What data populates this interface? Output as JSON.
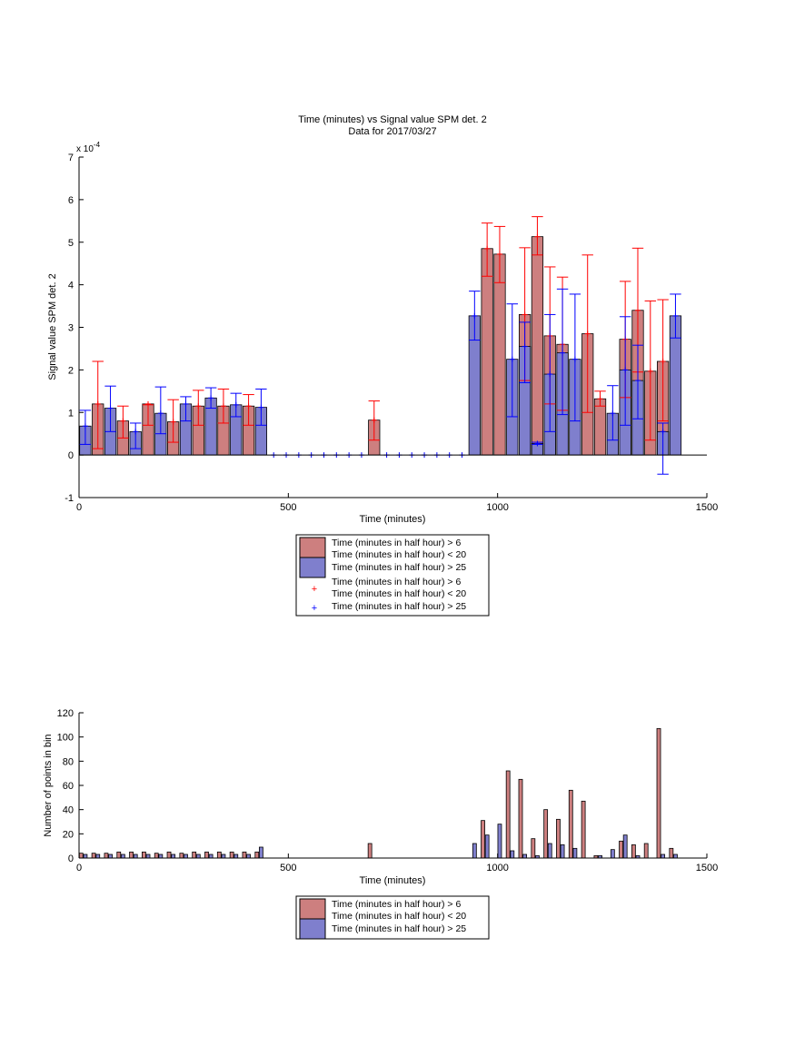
{
  "chart_data": [
    {
      "type": "bar",
      "title": "Time (minutes) vs Signal value SPM det. 2",
      "subtitle": "Data for 2017/03/27",
      "xlabel": "Time (minutes)",
      "ylabel": "Signal value SPM det. 2",
      "xlim": [
        0,
        1500
      ],
      "ylim": [
        -1,
        7
      ],
      "y_exponent": "x 10",
      "y_exponent_power": "-4",
      "xticks": [
        "0",
        "500",
        "1000",
        "1500"
      ],
      "yticks": [
        "-1",
        "0",
        "1",
        "2",
        "3",
        "4",
        "5",
        "6",
        "7"
      ],
      "xtick_values": [
        0,
        500,
        1000,
        1500
      ],
      "ytick_values": [
        -1,
        0,
        1,
        2,
        3,
        4,
        5,
        6,
        7
      ],
      "legend": [
        "Time (minutes in half hour) > 6",
        "Time (minutes in half hour) < 20",
        "Time (minutes in half hour) > 25",
        "Time (minutes in half hour) > 6",
        "Time (minutes in half hour) < 20",
        "Time (minutes in half hour) > 25"
      ],
      "legend_placement": "below",
      "colors": {
        "red_bar": "#cd7f7f",
        "blue_bar": "#7f7fcd",
        "red_err": "#ff0000",
        "blue_err": "#0000ff"
      },
      "series": [
        {
          "name": "Time (minutes in half hour) > 6  Time (minutes in half hour) < 20",
          "x": [
            45,
            105,
            165,
            225,
            285,
            345,
            405,
            705,
            975,
            1005,
            1065,
            1095,
            1125,
            1155,
            1215,
            1245,
            1305,
            1335,
            1365,
            1395
          ],
          "values": [
            1.2,
            0.8,
            1.2,
            0.78,
            1.15,
            1.15,
            1.15,
            0.82,
            4.85,
            4.72,
            3.3,
            5.13,
            2.8,
            2.6,
            2.85,
            1.32,
            2.72,
            3.4,
            1.97,
            2.2
          ],
          "err_low": [
            0.15,
            0.4,
            0.7,
            0.3,
            0.7,
            0.75,
            0.7,
            0.35,
            4.2,
            4.05,
            1.75,
            4.7,
            1.2,
            1.05,
            1.0,
            1.15,
            1.35,
            1.95,
            0.35,
            0.8
          ],
          "err_high": [
            2.2,
            1.15,
            1.18,
            1.3,
            1.52,
            1.55,
            1.42,
            1.27,
            5.45,
            5.37,
            4.87,
            5.6,
            4.42,
            4.18,
            4.7,
            1.5,
            4.08,
            4.86,
            3.62,
            3.65
          ]
        },
        {
          "name": "Time (minutes in half hour) > 25",
          "x": [
            15,
            75,
            135,
            195,
            255,
            315,
            375,
            435,
            945,
            1035,
            1065,
            1095,
            1125,
            1155,
            1185,
            1275,
            1305,
            1335,
            1395,
            1425
          ],
          "values": [
            0.68,
            1.1,
            0.55,
            0.98,
            1.2,
            1.34,
            1.18,
            1.12,
            3.27,
            2.25,
            2.55,
            0.27,
            1.9,
            2.4,
            2.25,
            0.98,
            2.0,
            1.75,
            0.55,
            3.27
          ],
          "err_low": [
            0.25,
            0.55,
            0.15,
            0.5,
            0.8,
            1.1,
            0.9,
            0.7,
            2.7,
            0.9,
            1.7,
            0.25,
            0.55,
            0.95,
            0.8,
            0.35,
            0.7,
            0.85,
            -0.45,
            2.75
          ],
          "err_high": [
            1.05,
            1.62,
            0.75,
            1.6,
            1.37,
            1.58,
            1.45,
            1.55,
            3.85,
            3.55,
            3.12,
            0.3,
            3.3,
            3.9,
            3.78,
            1.63,
            3.25,
            2.58,
            0.75,
            3.78
          ]
        }
      ],
      "zero_markers_x": [
        465,
        495,
        525,
        555,
        585,
        615,
        645,
        675,
        735,
        765,
        795,
        825,
        855,
        885,
        915
      ]
    },
    {
      "type": "bar",
      "xlabel": "Time (minutes)",
      "ylabel": "Number of points in bin",
      "xlim": [
        0,
        1500
      ],
      "ylim": [
        0,
        120
      ],
      "xticks": [
        "0",
        "500",
        "1000",
        "1500"
      ],
      "yticks": [
        "0",
        "20",
        "40",
        "60",
        "80",
        "100",
        "120"
      ],
      "xtick_values": [
        0,
        500,
        1000,
        1500
      ],
      "ytick_values": [
        0,
        20,
        40,
        60,
        80,
        100,
        120
      ],
      "legend": [
        "Time (minutes in half hour) > 6",
        "Time (minutes in half hour) < 20",
        "Time (minutes in half hour) > 25"
      ],
      "legend_placement": "below",
      "colors": {
        "red_bar": "#cd7f7f",
        "blue_bar": "#7f7fcd"
      },
      "series": [
        {
          "name": "Time (minutes in half hour) > 6  Time (minutes in half hour) < 20",
          "x": [
            5,
            35,
            65,
            95,
            125,
            155,
            185,
            215,
            245,
            275,
            305,
            335,
            365,
            395,
            425,
            455,
            485,
            515,
            545,
            575,
            605,
            635,
            665,
            695,
            725,
            755,
            785,
            815,
            845,
            875,
            905,
            935,
            965,
            995,
            1025,
            1055,
            1085,
            1115,
            1145,
            1175,
            1205,
            1235,
            1265,
            1295,
            1325,
            1355,
            1385,
            1415
          ],
          "values": [
            4,
            4,
            4,
            5,
            5,
            5,
            4,
            5,
            4,
            5,
            5,
            5,
            5,
            5,
            5,
            0,
            0,
            0,
            0,
            0,
            0,
            0,
            0,
            12,
            0,
            0,
            0,
            0,
            0,
            0,
            0,
            0,
            31,
            0,
            72,
            65,
            16,
            40,
            32,
            56,
            47,
            2,
            0,
            14,
            11,
            12,
            107,
            8
          ]
        },
        {
          "name": "Time (minutes in half hour) > 25",
          "x": [
            15,
            45,
            75,
            105,
            135,
            165,
            195,
            225,
            255,
            285,
            315,
            345,
            375,
            405,
            435,
            465,
            495,
            525,
            555,
            585,
            615,
            645,
            675,
            705,
            735,
            765,
            795,
            825,
            855,
            885,
            915,
            945,
            975,
            1005,
            1035,
            1065,
            1095,
            1125,
            1155,
            1185,
            1215,
            1245,
            1275,
            1305,
            1335,
            1365,
            1395,
            1425
          ],
          "values": [
            3,
            3,
            3,
            3,
            3,
            3,
            3,
            3,
            3,
            3,
            3,
            3,
            3,
            3,
            9,
            0,
            0,
            0,
            0,
            0,
            0,
            0,
            0,
            0,
            0,
            0,
            0,
            0,
            0,
            0,
            0,
            12,
            19,
            28,
            6,
            3,
            2,
            12,
            11,
            8,
            0,
            2,
            7,
            19,
            2,
            0,
            3,
            3
          ]
        }
      ]
    }
  ]
}
